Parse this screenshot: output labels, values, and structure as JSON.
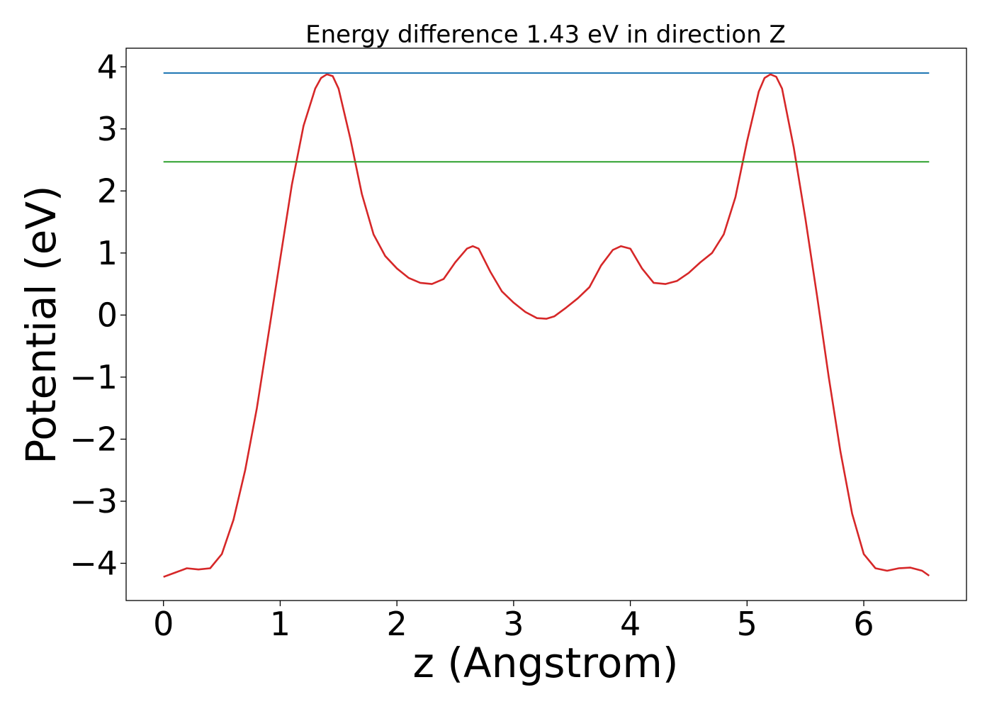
{
  "chart_data": {
    "type": "line",
    "title": "Energy difference 1.43 eV in direction Z",
    "xlabel": "z (Angstrom)",
    "ylabel": "Potential (eV)",
    "xlim": [
      -0.32,
      6.88
    ],
    "ylim": [
      -4.6,
      4.3
    ],
    "xticks": [
      "0",
      "1",
      "2",
      "3",
      "4",
      "5",
      "6"
    ],
    "yticks": [
      "−4",
      "−3",
      "−2",
      "−1",
      "0",
      "1",
      "2",
      "3",
      "4"
    ],
    "grid": false,
    "series": [
      {
        "color": "#d62728",
        "x": [
          0.0,
          0.1,
          0.2,
          0.3,
          0.4,
          0.5,
          0.6,
          0.7,
          0.8,
          0.9,
          1.0,
          1.1,
          1.2,
          1.3,
          1.35,
          1.4,
          1.45,
          1.5,
          1.6,
          1.7,
          1.8,
          1.9,
          2.0,
          2.1,
          2.2,
          2.3,
          2.4,
          2.5,
          2.6,
          2.65,
          2.7,
          2.8,
          2.9,
          3.0,
          3.1,
          3.2,
          3.28,
          3.35,
          3.45,
          3.55,
          3.65,
          3.75,
          3.85,
          3.92,
          4.0,
          4.1,
          4.2,
          4.3,
          4.4,
          4.5,
          4.6,
          4.7,
          4.8,
          4.9,
          5.0,
          5.1,
          5.15,
          5.2,
          5.25,
          5.3,
          5.4,
          5.5,
          5.6,
          5.7,
          5.8,
          5.9,
          6.0,
          6.1,
          6.2,
          6.3,
          6.4,
          6.5,
          6.56
        ],
        "values": [
          -4.22,
          -4.15,
          -4.08,
          -4.1,
          -4.08,
          -3.85,
          -3.3,
          -2.5,
          -1.5,
          -0.3,
          0.9,
          2.1,
          3.05,
          3.65,
          3.82,
          3.88,
          3.85,
          3.65,
          2.85,
          1.95,
          1.3,
          0.95,
          0.75,
          0.6,
          0.52,
          0.5,
          0.58,
          0.85,
          1.07,
          1.11,
          1.07,
          0.7,
          0.38,
          0.2,
          0.05,
          -0.05,
          -0.06,
          -0.02,
          0.12,
          0.27,
          0.45,
          0.8,
          1.05,
          1.11,
          1.07,
          0.75,
          0.52,
          0.5,
          0.55,
          0.68,
          0.85,
          1.0,
          1.3,
          1.9,
          2.8,
          3.6,
          3.82,
          3.88,
          3.84,
          3.65,
          2.7,
          1.55,
          0.3,
          -1.0,
          -2.2,
          -3.2,
          -3.85,
          -4.08,
          -4.12,
          -4.08,
          -4.07,
          -4.12,
          -4.2
        ]
      },
      {
        "color": "#1f77b4",
        "x": [
          0.0,
          6.56
        ],
        "values": [
          3.9,
          3.9
        ]
      },
      {
        "color": "#2ca02c",
        "x": [
          0.0,
          6.56
        ],
        "values": [
          2.47,
          2.47
        ]
      }
    ]
  }
}
